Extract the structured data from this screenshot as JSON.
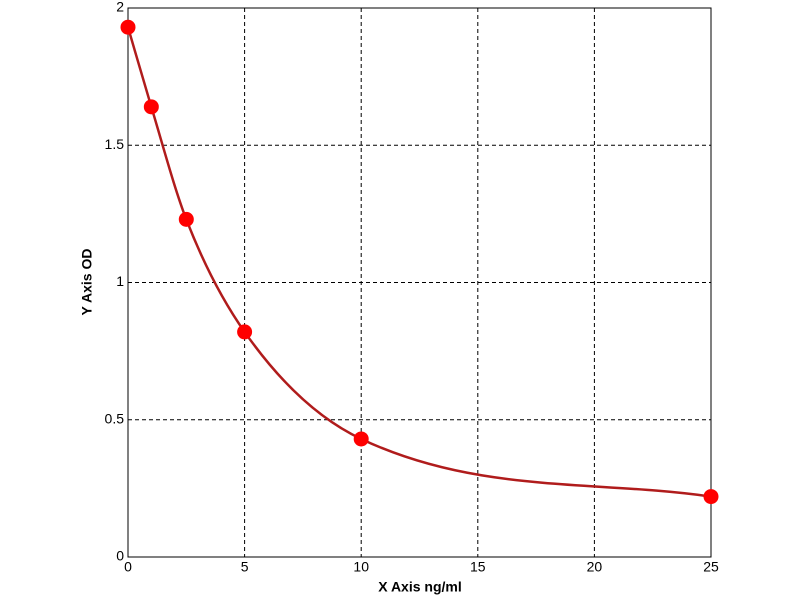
{
  "chart_data": {
    "type": "line",
    "x_label": "X Axis ng/ml",
    "y_label": "Y Axis OD",
    "series": [
      {
        "x": [
          0,
          1,
          2.5,
          5,
          10,
          25
        ],
        "values": [
          1.93,
          1.64,
          1.23,
          0.82,
          0.43,
          0.22
        ],
        "color": "#b01c1c",
        "marker_color": "#ff0000"
      }
    ],
    "xlim": [
      0,
      25
    ],
    "ylim": [
      0,
      2
    ],
    "xticks": [
      0,
      5,
      10,
      15,
      20,
      25
    ],
    "yticks": [
      0,
      0.5,
      1,
      1.5,
      2
    ],
    "grid": true,
    "smooth": true
  }
}
